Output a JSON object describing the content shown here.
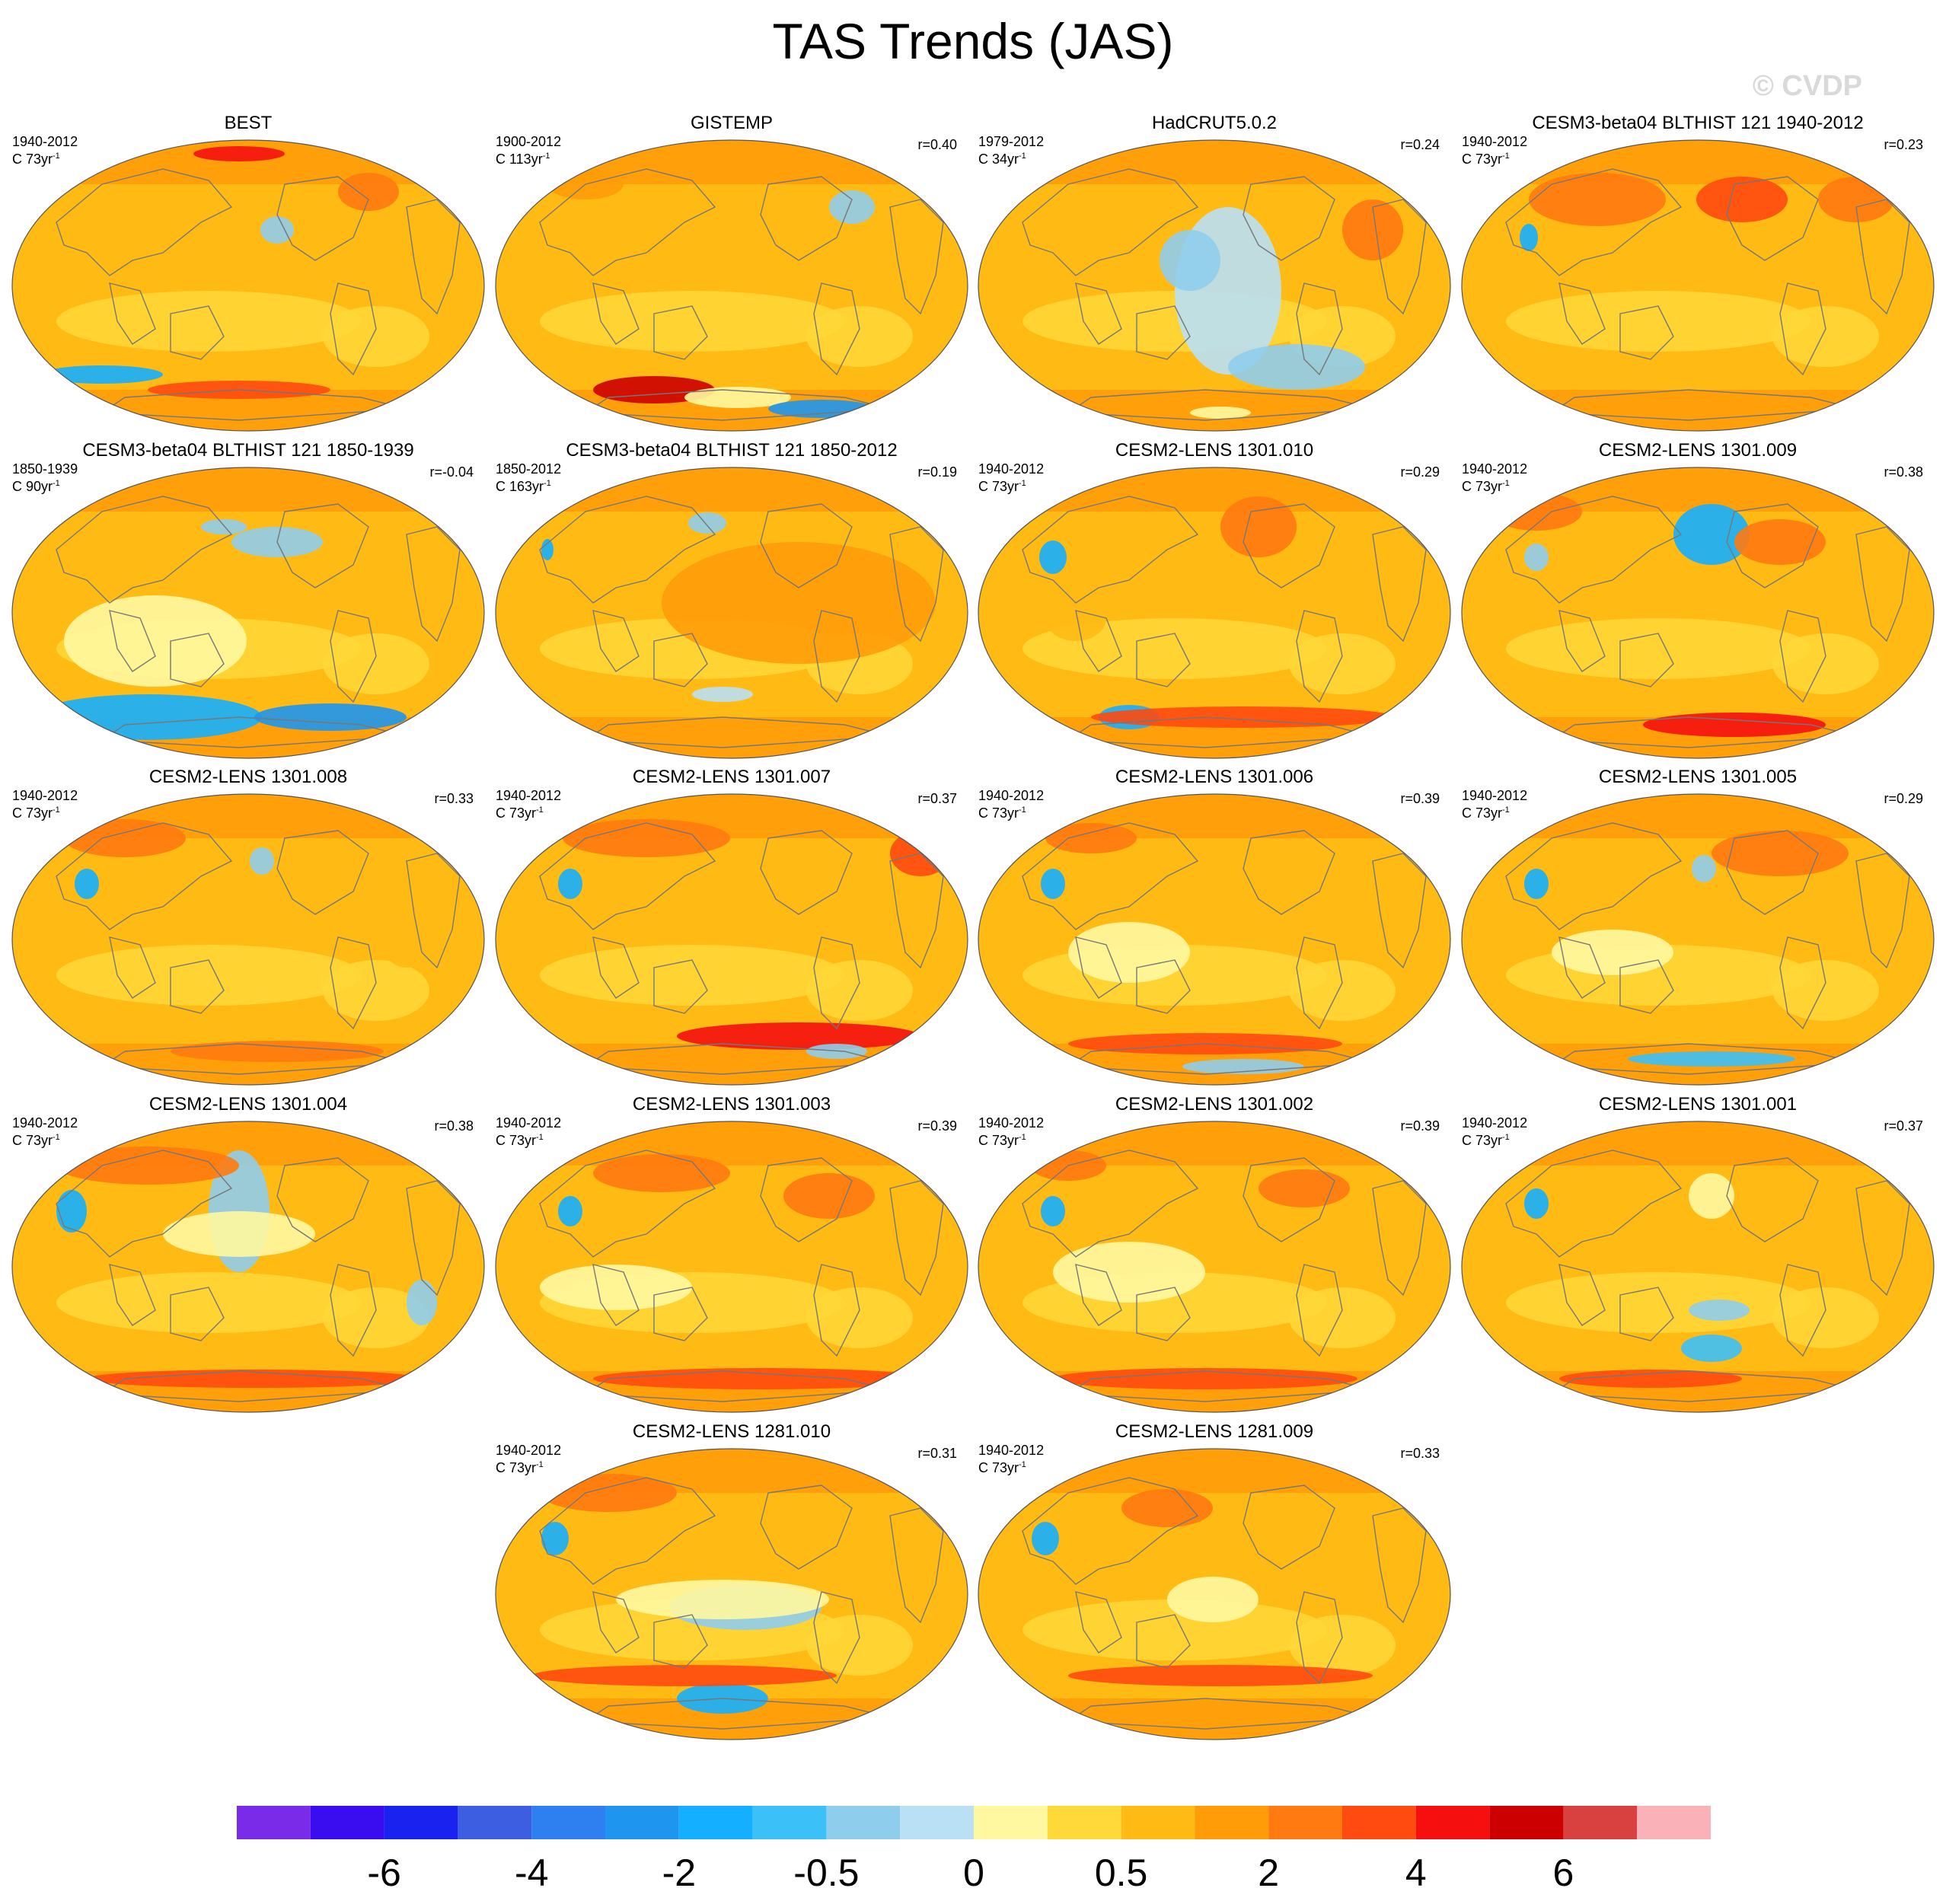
{
  "title": "TAS Trends (JAS)",
  "watermark": "© CVDP",
  "colors": {
    "scale": [
      "#7a2be8",
      "#3a0df0",
      "#1a22f0",
      "#3d5ee0",
      "#2e7ff0",
      "#1e96f0",
      "#14b0ff",
      "#3cc0f8",
      "#8fcdec",
      "#b9e0f5",
      "#fff8a0",
      "#ffd93a",
      "#ffba14",
      "#ff9c08",
      "#ff7a10",
      "#ff4a10",
      "#f50f0f",
      "#cc0000",
      "#d94040",
      "#fab1b8"
    ],
    "coast": "#777777"
  },
  "colorbar": {
    "labels": [
      "-6",
      "-4",
      "-2",
      "-0.5",
      "0",
      "0.5",
      "2",
      "4",
      "6"
    ]
  },
  "panels": [
    {
      "title": "BEST",
      "period": "1940-2012",
      "units": "C 73yr",
      "units_sup": "-1",
      "r": ""
    },
    {
      "title": "GISTEMP",
      "period": "1900-2012",
      "units": "C 113yr",
      "units_sup": "-1",
      "r": "r=0.40"
    },
    {
      "title": "HadCRUT5.0.2",
      "period": "1979-2012",
      "units": "C 34yr",
      "units_sup": "-1",
      "r": "r=0.24"
    },
    {
      "title": "CESM3-beta04 BLTHIST 121 1940-2012",
      "period": "1940-2012",
      "units": "C 73yr",
      "units_sup": "-1",
      "r": "r=0.23"
    },
    {
      "title": "CESM3-beta04 BLTHIST 121 1850-1939",
      "period": "1850-1939",
      "units": "C 90yr",
      "units_sup": "-1",
      "r": "r=-0.04"
    },
    {
      "title": "CESM3-beta04 BLTHIST 121 1850-2012",
      "period": "1850-2012",
      "units": "C 163yr",
      "units_sup": "-1",
      "r": "r=0.19"
    },
    {
      "title": "CESM2-LENS 1301.010",
      "period": "1940-2012",
      "units": "C 73yr",
      "units_sup": "-1",
      "r": "r=0.29"
    },
    {
      "title": "CESM2-LENS 1301.009",
      "period": "1940-2012",
      "units": "C 73yr",
      "units_sup": "-1",
      "r": "r=0.38"
    },
    {
      "title": "CESM2-LENS 1301.008",
      "period": "1940-2012",
      "units": "C 73yr",
      "units_sup": "-1",
      "r": "r=0.33"
    },
    {
      "title": "CESM2-LENS 1301.007",
      "period": "1940-2012",
      "units": "C 73yr",
      "units_sup": "-1",
      "r": "r=0.37"
    },
    {
      "title": "CESM2-LENS 1301.006",
      "period": "1940-2012",
      "units": "C 73yr",
      "units_sup": "-1",
      "r": "r=0.39"
    },
    {
      "title": "CESM2-LENS 1301.005",
      "period": "1940-2012",
      "units": "C 73yr",
      "units_sup": "-1",
      "r": "r=0.29"
    },
    {
      "title": "CESM2-LENS 1301.004",
      "period": "1940-2012",
      "units": "C 73yr",
      "units_sup": "-1",
      "r": "r=0.38"
    },
    {
      "title": "CESM2-LENS 1301.003",
      "period": "1940-2012",
      "units": "C 73yr",
      "units_sup": "-1",
      "r": "r=0.39"
    },
    {
      "title": "CESM2-LENS 1301.002",
      "period": "1940-2012",
      "units": "C 73yr",
      "units_sup": "-1",
      "r": "r=0.39"
    },
    {
      "title": "CESM2-LENS 1301.001",
      "period": "1940-2012",
      "units": "C 73yr",
      "units_sup": "-1",
      "r": "r=0.37"
    },
    {
      "title": "CESM2-LENS 1281.010",
      "period": "1940-2012",
      "units": "C 73yr",
      "units_sup": "-1",
      "r": "r=0.31"
    },
    {
      "title": "CESM2-LENS 1281.009",
      "period": "1940-2012",
      "units": "C 73yr",
      "units_sup": "-1",
      "r": "r=0.33"
    }
  ]
}
